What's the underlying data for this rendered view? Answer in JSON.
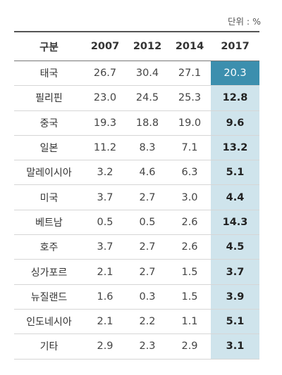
{
  "unit_label": "단위 : %",
  "headers": [
    "구분",
    "2007",
    "2012",
    "2014",
    "2017"
  ],
  "rows": [
    {
      "name": "태국",
      "values": [
        "26.7",
        "30.4",
        "27.1",
        "20.3"
      ]
    },
    {
      "name": "필리핀",
      "values": [
        "23.0",
        "24.5",
        "25.3",
        "12.8"
      ]
    },
    {
      "name": "중국",
      "values": [
        "19.3",
        "18.8",
        "19.0",
        "9.6"
      ]
    },
    {
      "name": "일본",
      "values": [
        "11.2",
        "8.3",
        "7.1",
        "13.2"
      ]
    },
    {
      "name": "말레이시아",
      "values": [
        "3.2",
        "4.6",
        "6.3",
        "5.1"
      ]
    },
    {
      "name": "미국",
      "values": [
        "3.7",
        "2.7",
        "3.0",
        "4.4"
      ]
    },
    {
      "name": "베트남",
      "values": [
        "0.5",
        "0.5",
        "2.6",
        "14.3"
      ]
    },
    {
      "name": "호주",
      "values": [
        "3.7",
        "2.7",
        "2.6",
        "4.5"
      ]
    },
    {
      "name": "싱가포르",
      "values": [
        "2.1",
        "2.7",
        "1.5",
        "3.7"
      ]
    },
    {
      "name": "뉴질랜드",
      "values": [
        "1.6",
        "0.3",
        "1.5",
        "3.9"
      ]
    },
    {
      "name": "인도네시아",
      "values": [
        "2.1",
        "2.2",
        "1.1",
        "5.1"
      ]
    },
    {
      "name": "기타",
      "values": [
        "2.9",
        "2.3",
        "2.9",
        "3.1"
      ]
    }
  ],
  "colors": {
    "highlight_top": "#3c8fae",
    "highlight_column": "#cfe4ec"
  }
}
